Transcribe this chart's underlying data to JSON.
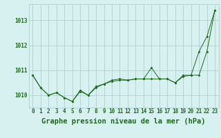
{
  "title": "Graphe pression niveau de la mer (hPa)",
  "x_labels": [
    "0",
    "1",
    "2",
    "3",
    "4",
    "5",
    "6",
    "7",
    "8",
    "9",
    "10",
    "11",
    "12",
    "13",
    "14",
    "15",
    "16",
    "17",
    "18",
    "19",
    "20",
    "21",
    "22",
    "23"
  ],
  "hours": [
    0,
    1,
    2,
    3,
    4,
    5,
    6,
    7,
    8,
    9,
    10,
    11,
    12,
    13,
    14,
    15,
    16,
    17,
    18,
    19,
    20,
    21,
    22,
    23
  ],
  "series1": [
    1010.8,
    1010.3,
    1010.0,
    1010.1,
    1009.9,
    1009.75,
    1010.2,
    1010.0,
    1010.35,
    1010.45,
    1010.6,
    1010.65,
    1010.6,
    1010.65,
    1010.65,
    1011.1,
    1010.65,
    1010.65,
    1010.5,
    1010.8,
    1010.8,
    1011.75,
    1012.35,
    1013.4
  ],
  "series2": [
    1010.8,
    1010.3,
    1010.0,
    1010.1,
    1009.9,
    1009.75,
    1010.15,
    1010.0,
    1010.3,
    1010.45,
    1010.55,
    1010.6,
    1010.6,
    1010.65,
    1010.65,
    1010.65,
    1010.65,
    1010.65,
    1010.5,
    1010.75,
    1010.8,
    1010.8,
    1011.75,
    1013.4
  ],
  "line_color": "#1a6b1a",
  "marker_color": "#1a6b1a",
  "bg_color": "#d7f0f0",
  "grid_color": "#a8c8c8",
  "ylim": [
    1009.5,
    1013.65
  ],
  "yticks": [
    1010,
    1011,
    1012,
    1013
  ],
  "title_fontsize": 7.5,
  "tick_fontsize": 5.5
}
